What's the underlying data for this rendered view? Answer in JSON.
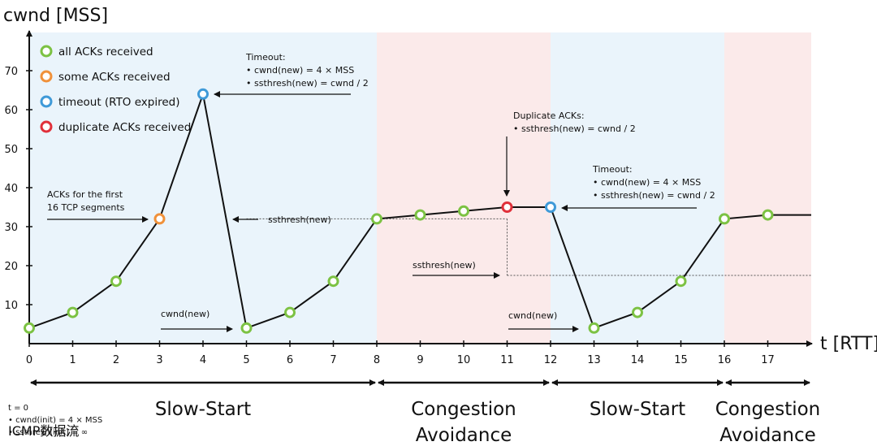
{
  "chart_data": {
    "type": "line",
    "ylabel": "cwnd [MSS]",
    "xlabel": "t [RTT]",
    "xlim": [
      0,
      18
    ],
    "ylim": [
      0,
      75
    ],
    "xticks": [
      0,
      1,
      2,
      3,
      4,
      5,
      6,
      7,
      8,
      9,
      10,
      11,
      12,
      13,
      14,
      15,
      16,
      17
    ],
    "yticks": [
      10,
      20,
      30,
      40,
      50,
      60,
      70
    ],
    "series": [
      {
        "x": [
          0,
          1,
          2,
          3,
          4,
          5,
          6,
          7,
          8,
          9,
          10,
          11,
          12,
          13,
          14,
          15,
          16,
          17,
          18
        ],
        "y": [
          4,
          8,
          16,
          32,
          64,
          4,
          8,
          16,
          32,
          33,
          34,
          35,
          35,
          4,
          8,
          16,
          32,
          33,
          33
        ],
        "marker_status": [
          "all",
          "all",
          "all",
          "some",
          "timeout",
          "all",
          "all",
          "all",
          "all",
          "all",
          "all",
          "duplicate",
          "timeout",
          "all",
          "all",
          "all",
          "all",
          "all",
          null
        ]
      }
    ],
    "legend": {
      "placement": "top-left",
      "items": [
        {
          "key": "all",
          "label": "all ACKs received",
          "color": "#7cc243"
        },
        {
          "key": "some",
          "label": "some ACKs received",
          "color": "#f0913a"
        },
        {
          "key": "timeout",
          "label": "timeout (RTO expired)",
          "color": "#3f9ad8"
        },
        {
          "key": "duplicate",
          "label": "duplicate ACKs received",
          "color": "#e0303a"
        }
      ]
    },
    "phases": [
      {
        "label_lines": [
          "Slow-Start"
        ],
        "x": [
          0,
          8
        ],
        "color": "#eaf4fb"
      },
      {
        "label_lines": [
          "Congestion",
          "Avoidance"
        ],
        "x": [
          8,
          12
        ],
        "color": "#fbeaea"
      },
      {
        "label_lines": [
          "Slow-Start"
        ],
        "x": [
          12,
          16
        ],
        "color": "#eaf4fb"
      },
      {
        "label_lines": [
          "Congestion",
          "Avoidance"
        ],
        "x": [
          16,
          18
        ],
        "color": "#fbeaea"
      }
    ],
    "thresholds": [
      {
        "y": 32,
        "x": [
          5,
          11
        ]
      },
      {
        "y": 17.5,
        "x": [
          11,
          18
        ]
      }
    ],
    "annotations": [
      {
        "lines": [
          "Timeout:",
          "• cwnd(new) = 4 × MSS",
          "• ssthresh(new) = cwnd / 2"
        ]
      },
      {
        "lines": [
          "ACKs for the first",
          "16 TCP segments"
        ]
      },
      {
        "lines": [
          "ssthresh(new)"
        ]
      },
      {
        "lines": [
          "cwnd(new)"
        ]
      },
      {
        "lines": [
          "Duplicate ACKs:",
          "• ssthresh(new) = cwnd / 2"
        ]
      },
      {
        "lines": [
          "Timeout:",
          "• cwnd(new) = 4 × MSS",
          "• ssthresh(new) = cwnd / 2"
        ]
      },
      {
        "lines": [
          "ssthresh(new)"
        ]
      },
      {
        "lines": [
          "cwnd(new)"
        ]
      }
    ],
    "footnote": [
      "t = 0",
      "• cwnd(init) = 4 × MSS",
      "• ssthresh(init) = ∞"
    ],
    "watermark": "ICMP数据流"
  }
}
